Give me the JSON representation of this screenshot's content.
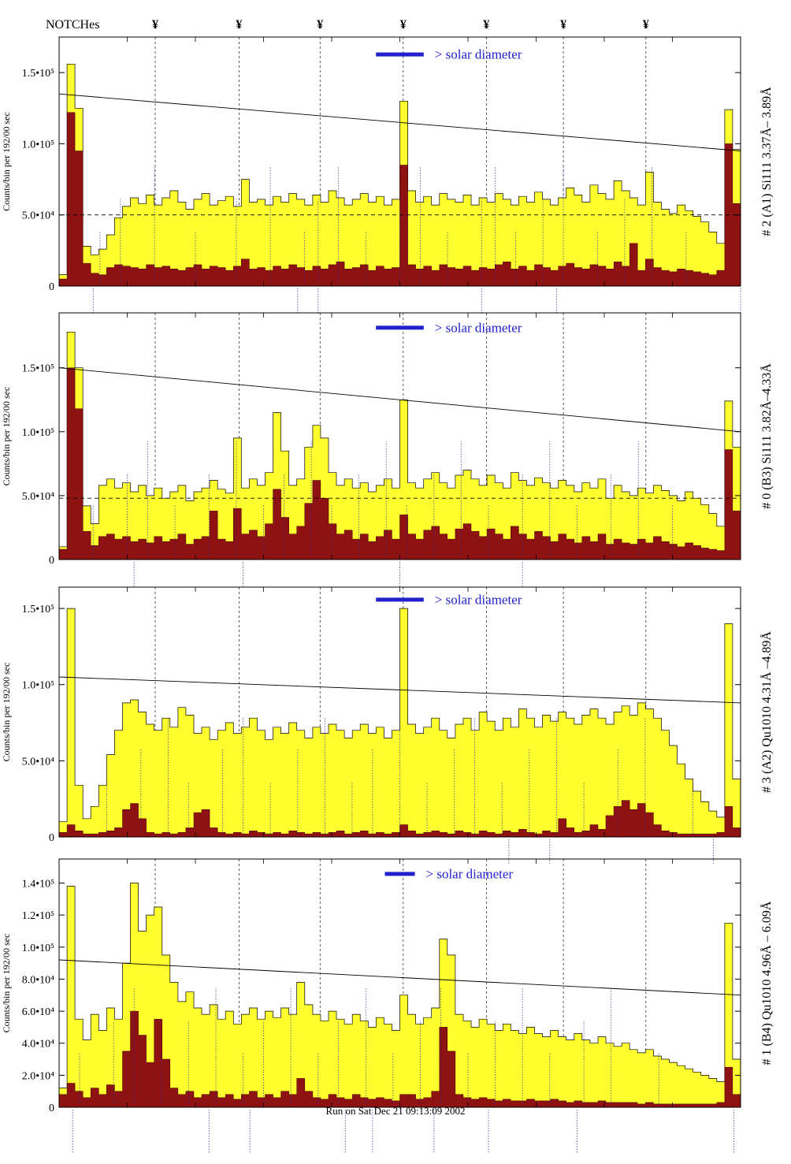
{
  "header": {
    "notches_label": "NOTCHes",
    "notch_symbol": "¥"
  },
  "notch_positions": [
    0.141,
    0.264,
    0.383,
    0.505,
    0.627,
    0.74,
    0.861
  ],
  "solar_diameter_label": "> solar diameter",
  "footer": {
    "run_label": "Run on Sat Dec 21 09:13:09 2002"
  },
  "colors": {
    "yellow": "#ffff30",
    "dark_red": "#8e1212",
    "blue": "#2020cc",
    "annotation": "#26268f",
    "frame": "#000000"
  },
  "chart_data": [
    {
      "type": "bar",
      "name": "panel-1",
      "right_label": "# 2 (A1) Si111  3.37Å– 3.89Å",
      "ylabel": "Counts/bin per  192/00 sec",
      "ymax": 175000,
      "value_unit": 1000,
      "yticks": [
        {
          "label": "1.5•10⁵",
          "value": 150000
        },
        {
          "label": "1.0•10⁵",
          "value": 100000
        },
        {
          "label": "5.0•10⁴",
          "value": 50000
        },
        {
          "label": "0",
          "value": 0
        }
      ],
      "series": [
        {
          "name": "total-counts",
          "color_key": "yellow",
          "values": [
            8,
            156,
            125,
            28,
            22,
            26,
            36,
            48,
            56,
            62,
            58,
            64,
            57,
            62,
            67,
            59,
            54,
            61,
            65,
            57,
            60,
            63,
            56,
            75,
            59,
            61,
            57,
            63,
            59,
            65,
            61,
            57,
            64,
            59,
            67,
            62,
            57,
            61,
            65,
            59,
            63,
            57,
            61,
            130,
            67,
            59,
            63,
            57,
            65,
            61,
            59,
            64,
            57,
            62,
            59,
            65,
            61,
            57,
            63,
            59,
            66,
            61,
            57,
            62,
            69,
            64,
            59,
            71,
            65,
            61,
            74,
            67,
            62,
            57,
            80,
            59,
            54,
            51,
            57,
            53,
            49,
            45,
            38,
            30,
            124,
            96
          ]
        },
        {
          "name": "rejected-counts",
          "color_key": "dark_red",
          "values": [
            5,
            122,
            95,
            16,
            9,
            8,
            13,
            15,
            14,
            13,
            12,
            15,
            13,
            14,
            12,
            11,
            13,
            15,
            12,
            14,
            13,
            11,
            14,
            19,
            12,
            13,
            11,
            14,
            12,
            15,
            13,
            11,
            14,
            12,
            15,
            17,
            12,
            13,
            15,
            11,
            14,
            12,
            13,
            85,
            15,
            12,
            14,
            11,
            15,
            13,
            12,
            14,
            11,
            13,
            12,
            15,
            17,
            12,
            14,
            11,
            15,
            13,
            11,
            14,
            16,
            13,
            12,
            15,
            14,
            12,
            17,
            14,
            30,
            11,
            19,
            13,
            11,
            10,
            12,
            11,
            10,
            9,
            8,
            11,
            100,
            58
          ]
        }
      ],
      "trend_line": {
        "start": 135000,
        "end": 95000
      },
      "dashed_level": 50000,
      "solar_bar": {
        "x0": 0.465,
        "x1": 0.535,
        "y_frac": 0.07
      },
      "annotation_xs": [
        0.06,
        0.09,
        0.14,
        0.2,
        0.26,
        0.31,
        0.36,
        0.38,
        0.41,
        0.45,
        0.5,
        0.53,
        0.57,
        0.62,
        0.64,
        0.67,
        0.71,
        0.74,
        0.79,
        0.83,
        0.87,
        0.92
      ],
      "below_marks": [
        0.05,
        0.35,
        0.38,
        0.62,
        0.73,
        1.0
      ]
    },
    {
      "type": "bar",
      "name": "panel-2",
      "right_label": "# 0 (B3) Si111  3.82Å–4.33Å",
      "ylabel": "Counts/bin per  192/00 sec",
      "ymax": 193000,
      "value_unit": 1000,
      "yticks": [
        {
          "label": "1.5•10⁵",
          "value": 150000
        },
        {
          "label": "1.0•10⁵",
          "value": 100000
        },
        {
          "label": "5.0•10⁴",
          "value": 50000
        },
        {
          "label": "0",
          "value": 0
        }
      ],
      "series": [
        {
          "name": "total-counts",
          "color_key": "yellow",
          "values": [
            10,
            178,
            150,
            42,
            28,
            58,
            63,
            56,
            60,
            53,
            58,
            50,
            56,
            48,
            53,
            58,
            46,
            53,
            56,
            62,
            55,
            52,
            95,
            56,
            63,
            58,
            68,
            115,
            85,
            58,
            63,
            88,
            105,
            95,
            68,
            58,
            63,
            56,
            60,
            53,
            58,
            63,
            56,
            125,
            60,
            56,
            63,
            68,
            60,
            56,
            66,
            70,
            63,
            58,
            66,
            60,
            56,
            68,
            62,
            58,
            64,
            60,
            56,
            62,
            58,
            53,
            60,
            56,
            63,
            48,
            58,
            53,
            50,
            56,
            52,
            58,
            54,
            50,
            46,
            53,
            48,
            43,
            36,
            26,
            124,
            88
          ]
        },
        {
          "name": "rejected-counts",
          "color_key": "dark_red",
          "values": [
            8,
            150,
            118,
            22,
            11,
            18,
            20,
            16,
            18,
            14,
            16,
            13,
            18,
            14,
            16,
            20,
            12,
            16,
            18,
            38,
            16,
            14,
            40,
            20,
            23,
            18,
            28,
            55,
            33,
            20,
            26,
            44,
            62,
            48,
            28,
            20,
            23,
            16,
            20,
            14,
            18,
            23,
            16,
            35,
            20,
            16,
            23,
            26,
            20,
            16,
            24,
            28,
            22,
            18,
            24,
            20,
            16,
            26,
            20,
            16,
            22,
            18,
            14,
            20,
            16,
            13,
            18,
            14,
            20,
            12,
            16,
            13,
            12,
            16,
            13,
            18,
            14,
            12,
            10,
            13,
            11,
            9,
            8,
            7,
            86,
            38
          ]
        }
      ],
      "trend_line": {
        "start": 150000,
        "end": 100000
      },
      "dashed_level": 48000,
      "solar_bar": {
        "x0": 0.465,
        "x1": 0.535,
        "y_frac": 0.06
      },
      "annotation_xs": [
        0.05,
        0.1,
        0.13,
        0.17,
        0.22,
        0.26,
        0.3,
        0.33,
        0.37,
        0.4,
        0.44,
        0.48,
        0.51,
        0.55,
        0.59,
        0.63,
        0.68,
        0.72,
        0.76,
        0.81,
        0.85,
        0.9
      ],
      "below_marks": [
        0.11,
        0.27,
        0.5,
        0.68
      ]
    },
    {
      "type": "bar",
      "name": "panel-3",
      "right_label": "# 3 (A2) Qu1010  4.31Å –4.89Å",
      "ylabel": "Counts/bin per  192/00 sec",
      "ymax": 164000,
      "value_unit": 1000,
      "yticks": [
        {
          "label": "1.5•10⁵",
          "value": 150000
        },
        {
          "label": "1.0•10⁵",
          "value": 100000
        },
        {
          "label": "5.0•10⁴",
          "value": 50000
        },
        {
          "label": "0",
          "value": 0
        }
      ],
      "series": [
        {
          "name": "total-counts",
          "color_key": "yellow",
          "values": [
            10,
            150,
            34,
            12,
            20,
            34,
            54,
            70,
            88,
            90,
            82,
            74,
            70,
            78,
            72,
            85,
            80,
            68,
            72,
            64,
            70,
            75,
            68,
            72,
            78,
            70,
            64,
            72,
            68,
            75,
            70,
            65,
            72,
            68,
            74,
            70,
            65,
            70,
            74,
            68,
            72,
            65,
            70,
            150,
            74,
            68,
            72,
            78,
            70,
            65,
            74,
            78,
            70,
            82,
            76,
            70,
            78,
            72,
            84,
            78,
            72,
            80,
            76,
            82,
            78,
            74,
            80,
            84,
            78,
            74,
            82,
            86,
            80,
            88,
            84,
            78,
            70,
            60,
            48,
            38,
            30,
            23,
            17,
            13,
            140,
            38
          ]
        },
        {
          "name": "rejected-counts",
          "color_key": "dark_red",
          "values": [
            3,
            8,
            4,
            2,
            2,
            3,
            4,
            6,
            18,
            22,
            12,
            3,
            2,
            3,
            2,
            3,
            6,
            16,
            18,
            6,
            3,
            2,
            3,
            2,
            4,
            3,
            2,
            3,
            2,
            4,
            3,
            2,
            3,
            2,
            3,
            4,
            2,
            3,
            4,
            2,
            3,
            2,
            3,
            8,
            4,
            2,
            3,
            4,
            3,
            2,
            4,
            3,
            2,
            4,
            3,
            2,
            4,
            3,
            5,
            3,
            2,
            4,
            3,
            12,
            6,
            3,
            4,
            8,
            5,
            14,
            20,
            24,
            18,
            22,
            16,
            8,
            4,
            3,
            2,
            2,
            2,
            2,
            2,
            3,
            20,
            6
          ]
        }
      ],
      "trend_line": {
        "start": 105000,
        "end": 88000
      },
      "dashed_level": null,
      "solar_bar": {
        "x0": 0.465,
        "x1": 0.535,
        "y_frac": 0.05
      },
      "annotation_xs": [
        0.07,
        0.12,
        0.16,
        0.19,
        0.24,
        0.27,
        0.31,
        0.35,
        0.39,
        0.43,
        0.46,
        0.5,
        0.54,
        0.58,
        0.61,
        0.65,
        0.69,
        0.73,
        0.77,
        0.82,
        0.86,
        0.93
      ],
      "below_marks": [
        0.66,
        0.72,
        0.96
      ]
    },
    {
      "type": "bar",
      "name": "panel-4",
      "right_label": "# 1 (B4) Qu1010 4.96Å – 6.09Å",
      "ylabel": "Counts/bin per  192/00 sec",
      "ymax": 155000,
      "value_unit": 1000,
      "yticks": [
        {
          "label": "1.4•10⁵",
          "value": 140000
        },
        {
          "label": "1.2•10⁵",
          "value": 120000
        },
        {
          "label": "1.0•10⁵",
          "value": 100000
        },
        {
          "label": "8.0•10⁴",
          "value": 80000
        },
        {
          "label": "6.0•10⁴",
          "value": 60000
        },
        {
          "label": "4.0•10⁴",
          "value": 40000
        },
        {
          "label": "2.0•10⁴",
          "value": 20000
        },
        {
          "label": "0",
          "value": 0
        }
      ],
      "series": [
        {
          "name": "total-counts",
          "color_key": "yellow",
          "values": [
            12,
            138,
            55,
            42,
            58,
            48,
            62,
            55,
            90,
            140,
            110,
            120,
            125,
            95,
            78,
            66,
            72,
            62,
            58,
            64,
            55,
            60,
            52,
            58,
            62,
            55,
            60,
            56,
            62,
            58,
            78,
            64,
            58,
            54,
            60,
            55,
            52,
            58,
            54,
            50,
            56,
            52,
            48,
            70,
            58,
            52,
            56,
            62,
            105,
            95,
            58,
            54,
            50,
            55,
            52,
            48,
            52,
            48,
            46,
            50,
            46,
            44,
            48,
            44,
            42,
            46,
            42,
            40,
            44,
            40,
            38,
            40,
            36,
            34,
            36,
            32,
            30,
            28,
            26,
            24,
            22,
            20,
            18,
            16,
            115,
            30
          ]
        },
        {
          "name": "rejected-counts",
          "color_key": "dark_red",
          "values": [
            8,
            15,
            10,
            6,
            12,
            8,
            14,
            10,
            35,
            60,
            45,
            28,
            55,
            30,
            12,
            8,
            10,
            6,
            8,
            10,
            6,
            8,
            5,
            8,
            10,
            6,
            8,
            6,
            10,
            8,
            18,
            10,
            6,
            5,
            8,
            6,
            5,
            8,
            6,
            5,
            6,
            5,
            4,
            8,
            8,
            5,
            6,
            10,
            50,
            35,
            8,
            6,
            5,
            6,
            5,
            4,
            5,
            4,
            4,
            5,
            4,
            4,
            5,
            4,
            3,
            4,
            3,
            3,
            4,
            3,
            3,
            3,
            3,
            2,
            3,
            2,
            2,
            2,
            2,
            2,
            2,
            2,
            2,
            3,
            25,
            8
          ]
        }
      ],
      "trend_line": {
        "start": 92000,
        "end": 70000
      },
      "dashed_level": null,
      "solar_bar": {
        "x0": 0.478,
        "x1": 0.522,
        "y_frac": 0.06
      },
      "annotation_xs": [
        0.03,
        0.08,
        0.11,
        0.15,
        0.19,
        0.23,
        0.27,
        0.3,
        0.34,
        0.38,
        0.41,
        0.45,
        0.49,
        0.53,
        0.56,
        0.6,
        0.64,
        0.68,
        0.72,
        0.77,
        0.81,
        0.88
      ],
      "below_marks": [
        0.02,
        0.22,
        0.28,
        0.42,
        0.46,
        0.55,
        0.63,
        0.76,
        0.99
      ]
    }
  ]
}
